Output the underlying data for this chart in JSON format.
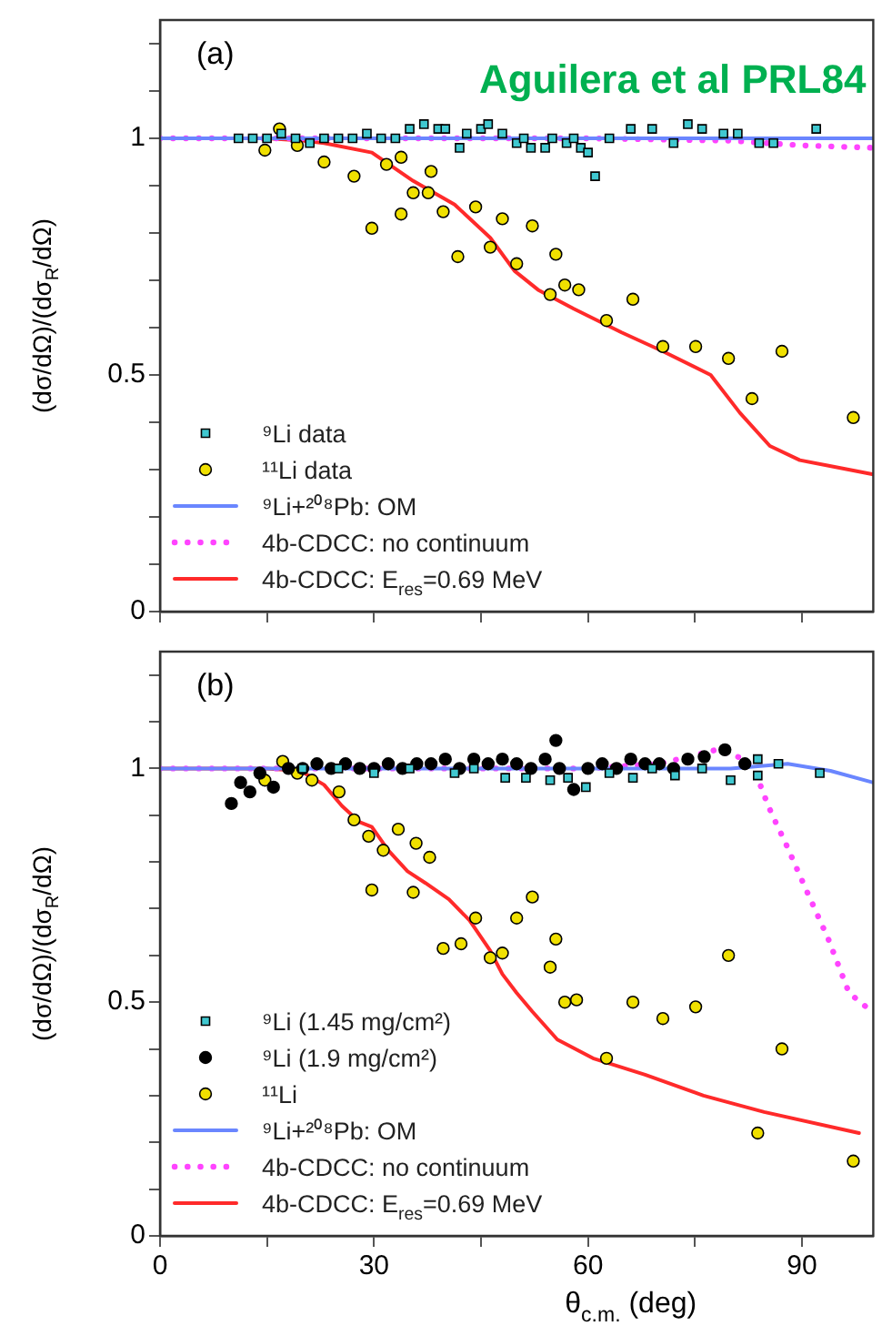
{
  "chart_data": [
    {
      "type": "scatter",
      "title": "(a)",
      "ylabel": "(dσ/dΩ)/(dσ$_{R}$/dΩ)",
      "annotations": [
        "Aguilera et al PRL84"
      ],
      "xlim": [
        0,
        100
      ],
      "xticks": [
        0,
        {
          "value": 15,
          "label": null
        },
        30,
        {
          "value": 45,
          "label": null
        },
        60,
        {
          "value": 75,
          "label": null
        },
        90
      ],
      "ylim": [
        0,
        1.25
      ],
      "yticks": [
        0,
        {
          "value": 0.1,
          "label": null
        },
        {
          "value": 0.2,
          "label": null
        },
        {
          "value": 0.3,
          "label": null
        },
        {
          "value": 0.4,
          "label": null
        },
        0.5,
        {
          "value": 0.6,
          "label": null
        },
        {
          "value": 0.7,
          "label": null
        },
        {
          "value": 0.8,
          "label": null
        },
        {
          "value": 0.9,
          "label": null
        },
        1,
        {
          "value": 1.1,
          "label": null
        },
        {
          "value": 1.2,
          "label": null
        }
      ],
      "tick_labels": "y",
      "grid": false,
      "legend": "bottom left",
      "series": [
        {
          "name": "⁹Li data",
          "type": "scatter",
          "marker": "square",
          "color": "#40c8d0",
          "x": [
            11,
            13,
            15,
            17,
            19,
            21,
            23,
            25,
            27,
            29,
            31,
            33,
            35,
            37,
            39,
            40,
            42,
            43,
            45,
            46,
            48,
            50,
            51,
            52,
            54,
            55,
            57,
            58,
            59,
            60,
            61,
            63,
            66,
            69,
            72,
            74,
            76,
            79,
            81,
            84,
            86,
            92
          ],
          "values": [
            1.0,
            1.0,
            1.0,
            1.01,
            1.0,
            0.99,
            1.0,
            1.0,
            1.0,
            1.01,
            1.0,
            1.0,
            1.02,
            1.03,
            1.02,
            1.02,
            0.98,
            1.01,
            1.02,
            1.03,
            1.01,
            0.99,
            1.0,
            0.98,
            0.98,
            1.0,
            0.99,
            1.0,
            0.98,
            0.97,
            0.92,
            1.0,
            1.02,
            1.02,
            0.99,
            1.03,
            1.02,
            1.01,
            1.01,
            0.99,
            0.99,
            1.02
          ]
        },
        {
          "name": "¹¹Li data",
          "type": "scatter",
          "marker": "circle",
          "color": "#f0e000",
          "x": [
            14.7,
            16.75,
            19.25,
            23,
            27.2,
            29.7,
            31.75,
            33.8,
            33.8,
            35.5,
            37.6,
            38,
            39.7,
            41.75,
            44.25,
            46.3,
            48,
            50,
            52.2,
            54.7,
            55.5,
            56.75,
            58.7,
            62.6,
            66.3,
            70.5,
            75.1,
            79.7,
            83,
            87.2,
            97.2
          ],
          "values": [
            0.975,
            1.02,
            0.985,
            0.95,
            0.92,
            0.81,
            0.945,
            0.96,
            0.84,
            0.885,
            0.885,
            0.93,
            0.845,
            0.75,
            0.855,
            0.77,
            0.83,
            0.735,
            0.815,
            0.67,
            0.755,
            0.69,
            0.68,
            0.615,
            0.66,
            0.56,
            0.56,
            0.535,
            0.45,
            0.55,
            0.41
          ]
        },
        {
          "name": "⁹Li+²⁰⁸Pb: OM",
          "type": "line",
          "marker": "none",
          "line_style": "solid",
          "color": "#6a86ff",
          "x": [
            0,
            100
          ],
          "values": [
            1,
            1
          ]
        },
        {
          "name": "4b-CDCC: no continuum",
          "type": "line",
          "marker": "none",
          "line_style": "dotted",
          "color": "#ff44ff",
          "x": [
            0,
            60,
            80,
            90,
            100
          ],
          "values": [
            1,
            1,
            0.995,
            0.985,
            0.98
          ]
        },
        {
          "name": "4b-CDCC: E$_{res}$=0.69 MeV",
          "type": "line",
          "marker": "none",
          "line_style": "solid",
          "color": "#ff2a2a",
          "x": [
            0,
            15,
            20,
            23,
            29.7,
            35.5,
            41.3,
            46.3,
            49.7,
            53,
            58,
            64.7,
            70.5,
            77.2,
            81.3,
            85.5,
            89.7,
            100
          ],
          "values": [
            1,
            1,
            0.995,
            0.99,
            0.97,
            0.91,
            0.86,
            0.79,
            0.72,
            0.68,
            0.64,
            0.59,
            0.55,
            0.5,
            0.42,
            0.35,
            0.32,
            0.29
          ]
        }
      ]
    },
    {
      "type": "scatter",
      "title": "(b)",
      "xlabel": "θ$_{c.m.}$ (deg)",
      "ylabel": "(dσ/dΩ)/(dσ$_{R}$/dΩ)",
      "xlim": [
        0,
        100
      ],
      "xticks": [
        0,
        {
          "value": 15,
          "label": null
        },
        30,
        {
          "value": 45,
          "label": null
        },
        60,
        {
          "value": 75,
          "label": null
        },
        90
      ],
      "ylim": [
        0,
        1.25
      ],
      "yticks": [
        0,
        {
          "value": 0.1,
          "label": null
        },
        {
          "value": 0.2,
          "label": null
        },
        {
          "value": 0.3,
          "label": null
        },
        {
          "value": 0.4,
          "label": null
        },
        0.5,
        {
          "value": 0.6,
          "label": null
        },
        {
          "value": 0.7,
          "label": null
        },
        {
          "value": 0.8,
          "label": null
        },
        {
          "value": 0.9,
          "label": null
        },
        1,
        {
          "value": 1.1,
          "label": null
        },
        {
          "value": 1.2,
          "label": null
        }
      ],
      "grid": false,
      "legend": "bottom left",
      "series": [
        {
          "name": "⁹Li (1.45 mg/cm²)",
          "type": "scatter",
          "marker": "square",
          "color": "#40c8d0",
          "x": [
            20,
            25,
            30,
            35,
            41.3,
            44,
            48.4,
            51.3,
            54.7,
            57.2,
            59.7,
            63,
            66.3,
            69,
            72.2,
            76,
            80,
            83.8,
            83.8,
            86.7,
            92.5
          ],
          "values": [
            1.0,
            1.0,
            0.99,
            1.0,
            0.99,
            1.0,
            0.98,
            0.98,
            0.975,
            0.98,
            0.96,
            0.99,
            0.98,
            1.0,
            0.985,
            1.0,
            0.975,
            0.985,
            1.02,
            1.01,
            0.99
          ]
        },
        {
          "name": "⁹Li (1.9 mg/cm²)",
          "type": "scatter",
          "marker": "circle",
          "color": "#000000",
          "x": [
            10,
            11.3,
            12.6,
            14,
            15.9,
            18,
            20,
            22,
            24,
            26,
            28,
            30,
            32,
            34,
            36,
            38,
            40,
            42,
            44,
            46,
            48,
            50,
            52,
            54,
            55.5,
            56,
            58,
            60,
            62,
            64,
            66,
            68,
            70,
            72,
            74,
            76.3,
            79.2,
            82
          ],
          "values": [
            0.925,
            0.97,
            0.95,
            0.99,
            0.96,
            1.0,
            1.0,
            1.01,
            1.0,
            1.01,
            1.0,
            1.0,
            1.01,
            1.0,
            1.01,
            1.01,
            1.02,
            1.0,
            1.02,
            1.01,
            1.02,
            1.01,
            1.0,
            1.02,
            1.06,
            1.0,
            0.955,
            1.0,
            1.01,
            1.0,
            1.02,
            1.01,
            1.01,
            1.0,
            1.02,
            1.025,
            1.04,
            1.01
          ]
        },
        {
          "name": "¹¹Li",
          "type": "scatter",
          "marker": "circle",
          "color": "#f0e000",
          "x": [
            14.7,
            17.2,
            19.25,
            21.3,
            25.1,
            27.2,
            29.25,
            29.7,
            31.3,
            33.4,
            35.5,
            35.9,
            37.8,
            39.7,
            42.2,
            44.25,
            46.3,
            48,
            50,
            52.2,
            54.7,
            55.5,
            56.75,
            58.4,
            62.6,
            66.3,
            70.5,
            75.1,
            79.7,
            83.8,
            87.2,
            97.2
          ],
          "values": [
            0.975,
            1.015,
            0.99,
            0.975,
            0.95,
            0.89,
            0.855,
            0.74,
            0.825,
            0.87,
            0.735,
            0.84,
            0.81,
            0.615,
            0.625,
            0.68,
            0.595,
            0.605,
            0.68,
            0.725,
            0.575,
            0.635,
            0.5,
            0.505,
            0.38,
            0.5,
            0.465,
            0.49,
            0.6,
            0.22,
            0.4,
            0.16
          ]
        },
        {
          "name": "⁹Li+²⁰⁸Pb: OM",
          "type": "line",
          "marker": "none",
          "line_style": "solid",
          "color": "#6a86ff",
          "x": [
            0,
            80,
            88,
            94,
            100
          ],
          "values": [
            1,
            1,
            1.01,
            0.995,
            0.97
          ]
        },
        {
          "name": "4b-CDCC: no continuum",
          "type": "line",
          "marker": "none",
          "line_style": "dotted",
          "color": "#ff44ff",
          "x": [
            0,
            60,
            70,
            78,
            82,
            83.7,
            84.5,
            85.7,
            87.8,
            90.75,
            93.7,
            96.6,
            99
          ],
          "values": [
            1,
            1,
            1.01,
            1.04,
            1.02,
            0.985,
            0.95,
            0.905,
            0.837,
            0.735,
            0.635,
            0.52,
            0.49
          ]
        },
        {
          "name": "4b-CDCC: E$_{res}$=0.69 MeV",
          "type": "line",
          "marker": "none",
          "line_style": "solid",
          "color": "#ff2a2a",
          "x": [
            0,
            15,
            19.7,
            23,
            25.5,
            28,
            29.7,
            32,
            34.7,
            37.2,
            40.5,
            43.4,
            46.3,
            48,
            50,
            52.2,
            55.7,
            60.7,
            68,
            76.2,
            84.7,
            98
          ],
          "values": [
            1,
            1,
            0.995,
            0.965,
            0.92,
            0.885,
            0.875,
            0.825,
            0.78,
            0.755,
            0.72,
            0.675,
            0.61,
            0.56,
            0.52,
            0.48,
            0.42,
            0.38,
            0.345,
            0.3,
            0.265,
            0.22
          ]
        }
      ]
    }
  ]
}
